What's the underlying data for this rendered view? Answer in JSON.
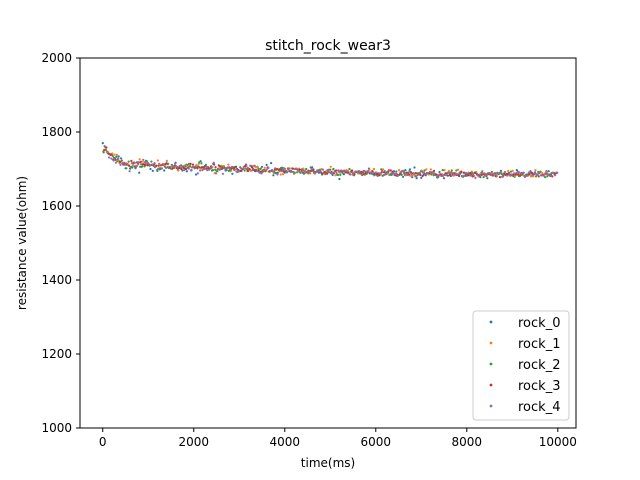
{
  "chart_data": {
    "type": "scatter",
    "title": "stitch_rock_wear3",
    "xlabel": "time(ms)",
    "ylabel": "resistance value(ohm)",
    "xlim": [
      -500,
      10400
    ],
    "ylim": [
      1000,
      2000
    ],
    "x_ticks": [
      0,
      2000,
      4000,
      6000,
      8000,
      10000
    ],
    "y_ticks": [
      1000,
      1200,
      1400,
      1600,
      1800,
      2000
    ],
    "grid": false,
    "legend_position": "lower right",
    "point_step_ms": 50,
    "series": [
      {
        "name": "rock_0",
        "color": "#1f77b4",
        "y": [
          1770,
          1760,
          1745,
          1741,
          1739,
          1730,
          1733,
          1734,
          1729,
          1712,
          1702,
          1712,
          1701,
          1704,
          1707,
          1718,
          1690,
          1706,
          1713,
          1722,
          1714,
          1700,
          1695,
          1705,
          1695,
          1699,
          1702,
          1696,
          1716,
          1703,
          1701,
          1705,
          1717,
          1698,
          1702,
          1696,
          1701,
          1694,
          1714,
          1697,
          1706,
          1685,
          1707,
          1721,
          1705,
          1708,
          1697,
          1702,
          1696,
          1712,
          1695,
          1710,
          1700,
          1707,
          1696,
          1704,
          1698,
          1687,
          1705,
          1700,
          1694,
          1695,
          1706,
          1712,
          1695,
          1709,
          1701,
          1694,
          1706,
          1690,
          1706,
          1697,
          1711,
          1693,
          1716,
          1683,
          1689,
          1690,
          1700,
          1703,
          1690,
          1691,
          1694,
          1693,
          1688,
          1701,
          1699,
          1690,
          1690,
          1690,
          1692,
          1694,
          1705,
          1693,
          1692,
          1690,
          1690,
          1689,
          1689,
          1693,
          1698,
          1684,
          1694,
          1684,
          1673,
          1693,
          1686,
          1691,
          1690,
          1693,
          1690,
          1693,
          1692,
          1688,
          1684,
          1694,
          1687,
          1701,
          1688,
          1686,
          1688,
          1688,
          1685,
          1682,
          1694,
          1692,
          1684,
          1684,
          1694,
          1693,
          1683,
          1689,
          1679,
          1697,
          1684,
          1699,
          1678,
          1704,
          1675,
          1685,
          1676,
          1684,
          1683,
          1688,
          1691,
          1691,
          1684,
          1677,
          1692,
          1682,
          1675,
          1687,
          1690,
          1681,
          1683,
          1688,
          1684,
          1687,
          1680,
          1690,
          1682,
          1688,
          1684,
          1682,
          1689,
          1684,
          1678,
          1688,
          1684,
          1675,
          1689,
          1692,
          1687,
          1680,
          1686,
          1695,
          1681,
          1684,
          1684,
          1683,
          1684,
          1679,
          1697,
          1681,
          1689,
          1690,
          1684,
          1685,
          1694,
          1686,
          1691,
          1684,
          1690,
          1683,
          1684,
          1694,
          1694,
          1685
        ]
      },
      {
        "name": "rock_1",
        "color": "#ff7f0e",
        "y": [
          1747,
          1753,
          1747,
          1740,
          1742,
          1739,
          1738,
          1722,
          1722,
          1717,
          1715,
          1712,
          1705,
          1710,
          1716,
          1709,
          1726,
          1720,
          1719,
          1714,
          1711,
          1711,
          1711,
          1706,
          1723,
          1703,
          1711,
          1708,
          1722,
          1706,
          1700,
          1705,
          1708,
          1696,
          1705,
          1707,
          1710,
          1703,
          1712,
          1704,
          1705,
          1711,
          1714,
          1702,
          1701,
          1701,
          1699,
          1702,
          1705,
          1689,
          1697,
          1706,
          1709,
          1708,
          1703,
          1712,
          1694,
          1702,
          1699,
          1692,
          1695,
          1700,
          1706,
          1708,
          1698,
          1695,
          1708,
          1705,
          1705,
          1700,
          1696,
          1703,
          1699,
          1692,
          1695,
          1689,
          1697,
          1699,
          1685,
          1686,
          1700,
          1694,
          1702,
          1702,
          1687,
          1701,
          1701,
          1692,
          1701,
          1690,
          1696,
          1688,
          1698,
          1687,
          1696,
          1697,
          1700,
          1690,
          1694,
          1691,
          1706,
          1699,
          1683,
          1684,
          1690,
          1694,
          1696,
          1697,
          1689,
          1696,
          1690,
          1693,
          1688,
          1687,
          1693,
          1684,
          1689,
          1698,
          1694,
          1700,
          1691,
          1684,
          1686,
          1699,
          1692,
          1692,
          1684,
          1691,
          1684,
          1687,
          1697,
          1693,
          1695,
          1683,
          1690,
          1682,
          1682,
          1683,
          1688,
          1688,
          1696,
          1691,
          1699,
          1685,
          1699,
          1687,
          1685,
          1684,
          1686,
          1686,
          1697,
          1689,
          1695,
          1692,
          1682,
          1688,
          1698,
          1692,
          1681,
          1681,
          1685,
          1684,
          1693,
          1681,
          1692,
          1680,
          1684,
          1687,
          1682,
          1688,
          1689,
          1689,
          1685,
          1681,
          1688,
          1690,
          1686,
          1685,
          1695,
          1681,
          1695,
          1681,
          1684,
          1690,
          1684,
          1682,
          1684,
          1691,
          1680,
          1680,
          1697,
          1686,
          1691,
          1689,
          1685,
          1691,
          1683,
          1689,
          1690,
          1688
        ]
      },
      {
        "name": "rock_2",
        "color": "#2ca02c",
        "y": [
          1745,
          1752,
          1742,
          1738,
          1735,
          1729,
          1721,
          1717,
          1723,
          1714,
          1702,
          1720,
          1706,
          1715,
          1702,
          1718,
          1706,
          1707,
          1707,
          1721,
          1712,
          1720,
          1708,
          1708,
          1701,
          1700,
          1713,
          1706,
          1705,
          1703,
          1711,
          1703,
          1703,
          1703,
          1710,
          1707,
          1707,
          1711,
          1707,
          1705,
          1702,
          1704,
          1718,
          1715,
          1700,
          1711,
          1705,
          1702,
          1697,
          1698,
          1694,
          1698,
          1704,
          1705,
          1697,
          1695,
          1698,
          1705,
          1706,
          1693,
          1705,
          1700,
          1696,
          1700,
          1700,
          1707,
          1698,
          1698,
          1700,
          1701,
          1693,
          1694,
          1704,
          1694,
          1697,
          1693,
          1689,
          1697,
          1703,
          1697,
          1695,
          1702,
          1695,
          1701,
          1690,
          1691,
          1693,
          1699,
          1687,
          1700,
          1688,
          1704,
          1695,
          1691,
          1694,
          1698,
          1685,
          1692,
          1689,
          1698,
          1688,
          1700,
          1695,
          1684,
          1684,
          1689,
          1694,
          1691,
          1700,
          1692,
          1683,
          1692,
          1691,
          1689,
          1691,
          1688,
          1690,
          1688,
          1687,
          1683,
          1684,
          1686,
          1699,
          1683,
          1689,
          1690,
          1685,
          1688,
          1687,
          1681,
          1684,
          1684,
          1692,
          1690,
          1690,
          1692,
          1688,
          1680,
          1684,
          1689,
          1693,
          1696,
          1688,
          1689,
          1685,
          1683,
          1686,
          1678,
          1685,
          1697,
          1684,
          1688,
          1683,
          1696,
          1688,
          1696,
          1685,
          1690,
          1679,
          1682,
          1686,
          1683,
          1689,
          1690,
          1687,
          1683,
          1690,
          1678,
          1686,
          1688,
          1685,
          1682,
          1689,
          1690,
          1688,
          1686,
          1688,
          1684,
          1689,
          1693,
          1681,
          1687,
          1693,
          1681,
          1685,
          1681,
          1685,
          1688,
          1689,
          1685,
          1680,
          1692,
          1693,
          1684,
          1678,
          1680,
          1685,
          1689,
          1689,
          1690
        ]
      },
      {
        "name": "rock_3",
        "color": "#d62728",
        "y": [
          1751,
          1758,
          1741,
          1739,
          1725,
          1725,
          1727,
          1719,
          1716,
          1715,
          1712,
          1709,
          1722,
          1717,
          1706,
          1714,
          1719,
          1713,
          1711,
          1710,
          1709,
          1711,
          1713,
          1709,
          1709,
          1710,
          1712,
          1713,
          1713,
          1705,
          1701,
          1709,
          1703,
          1703,
          1700,
          1703,
          1700,
          1705,
          1714,
          1712,
          1704,
          1702,
          1704,
          1705,
          1705,
          1701,
          1702,
          1707,
          1714,
          1705,
          1700,
          1707,
          1701,
          1702,
          1702,
          1704,
          1703,
          1701,
          1706,
          1697,
          1695,
          1700,
          1708,
          1695,
          1699,
          1705,
          1697,
          1695,
          1695,
          1693,
          1697,
          1695,
          1704,
          1694,
          1694,
          1699,
          1700,
          1698,
          1697,
          1693,
          1694,
          1700,
          1693,
          1701,
          1700,
          1698,
          1698,
          1696,
          1695,
          1691,
          1695,
          1695,
          1699,
          1691,
          1696,
          1693,
          1687,
          1691,
          1687,
          1691,
          1692,
          1689,
          1696,
          1696,
          1694,
          1694,
          1691,
          1690,
          1686,
          1696,
          1685,
          1693,
          1694,
          1692,
          1686,
          1689,
          1694,
          1689,
          1694,
          1687,
          1686,
          1683,
          1691,
          1691,
          1686,
          1694,
          1696,
          1693,
          1683,
          1684,
          1686,
          1694,
          1687,
          1690,
          1685,
          1689,
          1688,
          1689,
          1688,
          1684,
          1681,
          1687,
          1689,
          1688,
          1691,
          1695,
          1684,
          1682,
          1685,
          1682,
          1688,
          1682,
          1685,
          1687,
          1688,
          1684,
          1681,
          1693,
          1690,
          1686,
          1683,
          1689,
          1680,
          1690,
          1684,
          1683,
          1684,
          1685,
          1681,
          1686,
          1684,
          1685,
          1681,
          1688,
          1678,
          1679,
          1686,
          1687,
          1689,
          1684,
          1685,
          1685,
          1686,
          1684,
          1688,
          1679,
          1682,
          1685,
          1690,
          1687,
          1686,
          1680,
          1683,
          1683,
          1688,
          1686,
          1682,
          1680,
          1686,
          1690
        ]
      },
      {
        "name": "rock_4",
        "color": "#9467bd",
        "y": [
          1762,
          1747,
          1731,
          1728,
          1723,
          1717,
          1728,
          1711,
          1715,
          1711,
          1714,
          1694,
          1716,
          1718,
          1708,
          1718,
          1713,
          1725,
          1717,
          1717,
          1710,
          1712,
          1716,
          1697,
          1714,
          1701,
          1713,
          1703,
          1714,
          1706,
          1707,
          1714,
          1706,
          1708,
          1705,
          1697,
          1712,
          1701,
          1696,
          1706,
          1707,
          1688,
          1696,
          1697,
          1701,
          1706,
          1698,
          1703,
          1717,
          1688,
          1700,
          1701,
          1687,
          1701,
          1703,
          1701,
          1706,
          1697,
          1693,
          1694,
          1702,
          1701,
          1702,
          1703,
          1709,
          1697,
          1709,
          1694,
          1691,
          1688,
          1697,
          1697,
          1703,
          1695,
          1694,
          1702,
          1685,
          1694,
          1694,
          1702,
          1694,
          1701,
          1695,
          1692,
          1700,
          1697,
          1690,
          1698,
          1695,
          1693,
          1693,
          1699,
          1690,
          1692,
          1697,
          1694,
          1698,
          1686,
          1697,
          1691,
          1689,
          1691,
          1689,
          1693,
          1696,
          1695,
          1694,
          1694,
          1685,
          1685,
          1690,
          1693,
          1694,
          1687,
          1695,
          1693,
          1693,
          1690,
          1690,
          1690,
          1681,
          1688,
          1695,
          1684,
          1687,
          1697,
          1688,
          1688,
          1687,
          1683,
          1691,
          1695,
          1684,
          1685,
          1695,
          1686,
          1687,
          1680,
          1686,
          1694,
          1690,
          1686,
          1689,
          1692,
          1690,
          1688,
          1681,
          1683,
          1681,
          1683,
          1684,
          1691,
          1690,
          1689,
          1684,
          1686,
          1690,
          1681,
          1682,
          1689,
          1690,
          1682,
          1685,
          1676,
          1683,
          1685,
          1694,
          1688,
          1683,
          1689,
          1684,
          1687,
          1685,
          1688,
          1691,
          1679,
          1692,
          1682,
          1686,
          1685,
          1688,
          1689,
          1692,
          1687,
          1690,
          1681,
          1682,
          1690,
          1683,
          1689,
          1685,
          1688,
          1683,
          1682,
          1686,
          1684,
          1681,
          1690,
          1683,
          1690
        ]
      }
    ]
  }
}
